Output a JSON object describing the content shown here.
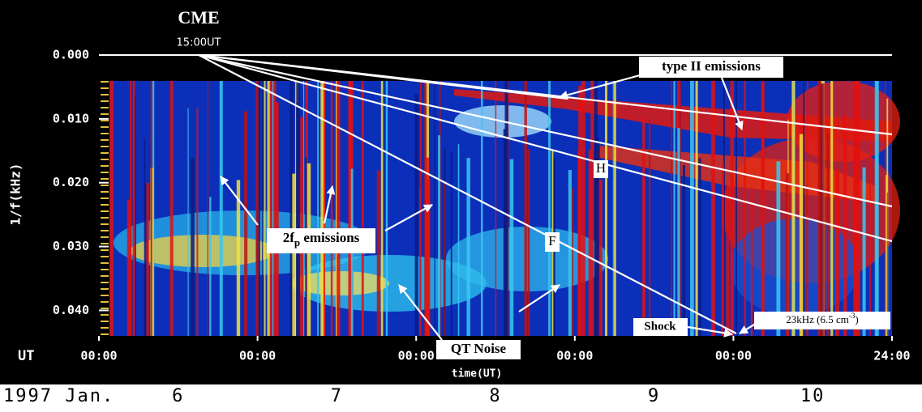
{
  "chart_data": {
    "type": "spectrogram",
    "ylabel": "1/f(kHz)",
    "xlabel": "time(UT)",
    "x_unit": "UT",
    "date_prefix": "1997 Jan.",
    "ylim": [
      0,
      0.044
    ],
    "yticks": [
      {
        "value": 0,
        "label": "0.000"
      },
      {
        "value": 0.01,
        "label": "0.010"
      },
      {
        "value": 0.02,
        "label": "0.020"
      },
      {
        "value": 0.03,
        "label": "0.030"
      },
      {
        "value": 0.04,
        "label": "0.040"
      }
    ],
    "xlim": [
      0,
      120
    ],
    "xticks": [
      {
        "value": 0,
        "label": "00:00"
      },
      {
        "value": 24,
        "label": "00:00"
      },
      {
        "value": 48,
        "label": "00:00"
      },
      {
        "value": 72,
        "label": "00:00"
      },
      {
        "value": 96,
        "label": "00:00"
      },
      {
        "value": 120,
        "label": "24:00"
      }
    ],
    "day_ticks": [
      {
        "value": 12,
        "label": "6"
      },
      {
        "value": 36,
        "label": "7"
      },
      {
        "value": 60,
        "label": "8"
      },
      {
        "value": 84,
        "label": "9"
      },
      {
        "value": 108,
        "label": "10"
      }
    ],
    "annotations": {
      "cme": "CME",
      "cme_time": "15:00UT",
      "type2": "type II emissions",
      "fp": {
        "text": "2f",
        "sub": "p",
        "tail": " emissions"
      },
      "qt": "QT Noise",
      "shock": "Shock",
      "freq": {
        "text": "23kHz (6.5 cm",
        "sup": "-3",
        "tail": ")"
      },
      "h": "H",
      "f": "F"
    }
  }
}
